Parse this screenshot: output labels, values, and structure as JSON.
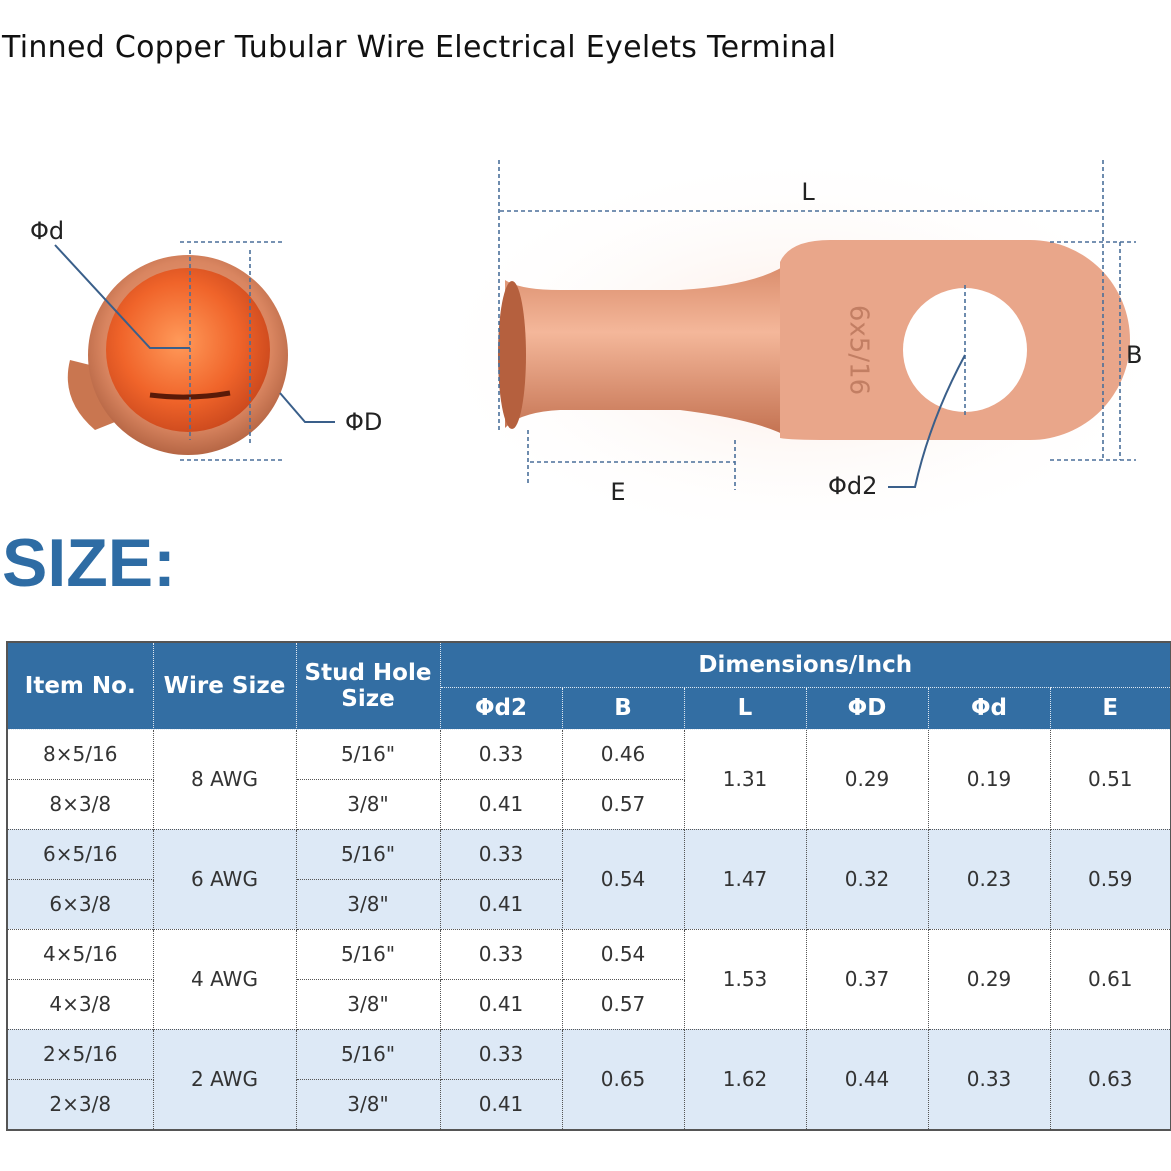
{
  "header": {
    "title": "Tinned Copper Tubular Wire Electrical Eyelets Terminal"
  },
  "diagram": {
    "end_inner": "Φd",
    "end_outer": "ΦD",
    "length": "L",
    "width": "B",
    "barrel": "E",
    "hole": "Φd2",
    "stamp": "6x5/16"
  },
  "size_heading": "SIZE:",
  "table": {
    "headers": {
      "item": "Item No.",
      "wire": "Wire Size",
      "stud": "Stud Hole Size",
      "dimensions": "Dimensions/Inch",
      "d2": "Φd2",
      "B": "B",
      "L": "L",
      "D": "ΦD",
      "d": "Φd",
      "E": "E"
    },
    "groups": [
      {
        "wire": "8 AWG",
        "L": "1.31",
        "D": "0.29",
        "d": "0.19",
        "E": "0.51",
        "rows": [
          {
            "item": "8×5/16",
            "stud": "5/16\"",
            "d2": "0.33",
            "B": "0.46"
          },
          {
            "item": "8×3/8",
            "stud": "3/8\"",
            "d2": "0.41",
            "B": "0.57"
          }
        ]
      },
      {
        "wire": "6 AWG",
        "B": "0.54",
        "L": "1.47",
        "D": "0.32",
        "d": "0.23",
        "E": "0.59",
        "rows": [
          {
            "item": "6×5/16",
            "stud": "5/16\"",
            "d2": "0.33"
          },
          {
            "item": "6×3/8",
            "stud": "3/8\"",
            "d2": "0.41"
          }
        ]
      },
      {
        "wire": "4 AWG",
        "L": "1.53",
        "D": "0.37",
        "d": "0.29",
        "E": "0.61",
        "rows": [
          {
            "item": "4×5/16",
            "stud": "5/16\"",
            "d2": "0.33",
            "B": "0.54"
          },
          {
            "item": "4×3/8",
            "stud": "3/8\"",
            "d2": "0.41",
            "B": "0.57"
          }
        ]
      },
      {
        "wire": "2 AWG",
        "B": "0.65",
        "L": "1.62",
        "D": "0.44",
        "d": "0.33",
        "E": "0.63",
        "rows": [
          {
            "item": "2×5/16",
            "stud": "5/16\"",
            "d2": "0.33"
          },
          {
            "item": "2×3/8",
            "stud": "3/8\"",
            "d2": "0.41"
          }
        ]
      }
    ]
  }
}
